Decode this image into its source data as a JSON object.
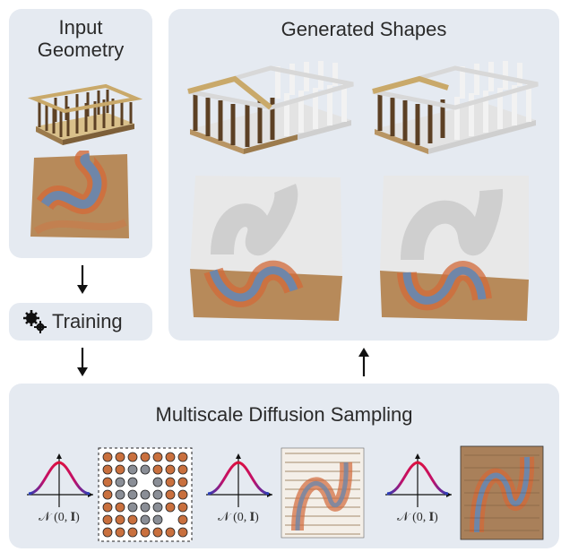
{
  "input_panel": {
    "title": "Input Geometry"
  },
  "training": {
    "label": "Training",
    "icon": "gears-icon"
  },
  "generated_panel": {
    "title": "Generated Shapes"
  },
  "diffusion_panel": {
    "title": "Multiscale Diffusion Sampling",
    "noise_label": "𝒩 (0, 𝐈)"
  },
  "colors": {
    "panel_bg": "#e5eaf1",
    "wood": "#8a6a43",
    "wood_light": "#c9ad78",
    "white_geo": "#e6e6e6",
    "terrain_sand": "#b78a5a",
    "terrain_orange": "#d26a3a",
    "terrain_blue": "#6f86a8",
    "bell_start": "#1f3fbf",
    "bell_end": "#e0103a"
  }
}
